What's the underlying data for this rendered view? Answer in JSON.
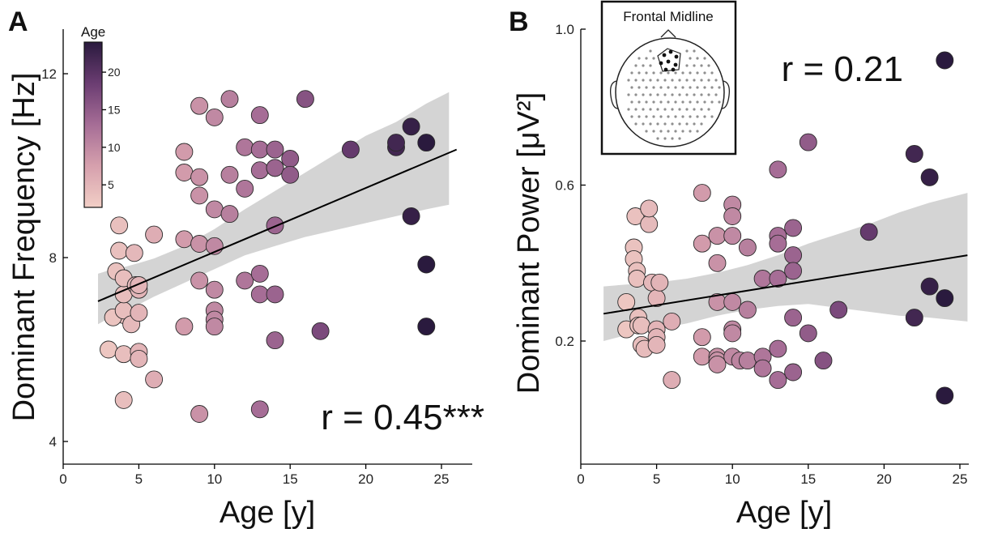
{
  "chart_data": [
    {
      "panel": "A",
      "type": "scatter",
      "xlabel": "Age [y]",
      "ylabel": "Dominant Frequency [Hz]",
      "xlim": [
        0,
        27
      ],
      "ylim": [
        3.5,
        13
      ],
      "xticks": [
        0,
        5,
        10,
        15,
        20,
        25
      ],
      "yticks": [
        4,
        8,
        12
      ],
      "annotation": "r = 0.45***",
      "colorbar": {
        "title": "Age",
        "ticks": [
          5,
          10,
          15,
          20
        ],
        "range": [
          2,
          24
        ]
      },
      "fit": {
        "x": [
          2.3,
          26
        ],
        "y": [
          7.05,
          10.35
        ]
      },
      "ci_band": {
        "x": [
          2.3,
          3,
          4,
          5,
          6,
          8,
          10,
          12,
          14,
          16,
          18,
          20,
          22,
          24,
          25.5
        ],
        "upper": [
          7.65,
          7.72,
          7.79,
          7.88,
          7.98,
          8.25,
          8.62,
          9.05,
          9.45,
          9.85,
          10.25,
          10.65,
          10.95,
          11.35,
          11.6
        ],
        "lower": [
          6.55,
          6.68,
          6.82,
          6.98,
          7.15,
          7.45,
          7.75,
          8.05,
          8.25,
          8.45,
          8.6,
          8.75,
          8.9,
          9.05,
          9.15
        ]
      },
      "points": [
        [
          4,
          6.75
        ],
        [
          3,
          6.0
        ],
        [
          3.3,
          6.7
        ],
        [
          3.5,
          7.7
        ],
        [
          3.7,
          8.15
        ],
        [
          3.7,
          8.7
        ],
        [
          4,
          6.85
        ],
        [
          4,
          7.2
        ],
        [
          4,
          7.55
        ],
        [
          4,
          5.9
        ],
        [
          4,
          4.9
        ],
        [
          4.5,
          6.55
        ],
        [
          4.7,
          8.1
        ],
        [
          4.8,
          7.4
        ],
        [
          5,
          7.3
        ],
        [
          5,
          6.8
        ],
        [
          5,
          7.4
        ],
        [
          5,
          5.95
        ],
        [
          5,
          5.8
        ],
        [
          6,
          8.5
        ],
        [
          6,
          5.35
        ],
        [
          8,
          9.85
        ],
        [
          8,
          10.3
        ],
        [
          8,
          8.4
        ],
        [
          8,
          6.5
        ],
        [
          9,
          11.3
        ],
        [
          9,
          9.75
        ],
        [
          9,
          9.35
        ],
        [
          9,
          8.3
        ],
        [
          9,
          7.5
        ],
        [
          9,
          4.6
        ],
        [
          10,
          11.05
        ],
        [
          10,
          9.05
        ],
        [
          10,
          8.25
        ],
        [
          10,
          7.3
        ],
        [
          10,
          6.85
        ],
        [
          10,
          6.65
        ],
        [
          10,
          6.5
        ],
        [
          11,
          11.45
        ],
        [
          11,
          9.8
        ],
        [
          11,
          8.95
        ],
        [
          12,
          10.4
        ],
        [
          12,
          9.5
        ],
        [
          12,
          7.5
        ],
        [
          13,
          11.1
        ],
        [
          13,
          10.35
        ],
        [
          13,
          9.9
        ],
        [
          13,
          7.65
        ],
        [
          13,
          7.2
        ],
        [
          13,
          4.7
        ],
        [
          14,
          10.35
        ],
        [
          14,
          9.95
        ],
        [
          14,
          9.95
        ],
        [
          14,
          8.7
        ],
        [
          14,
          7.2
        ],
        [
          14,
          6.2
        ],
        [
          15,
          10.15
        ],
        [
          15,
          9.8
        ],
        [
          16,
          11.45
        ],
        [
          17,
          6.4
        ],
        [
          19,
          10.35
        ],
        [
          22,
          10.4
        ],
        [
          22,
          10.5
        ],
        [
          23,
          10.85
        ],
        [
          23,
          8.9
        ],
        [
          24,
          10.5
        ],
        [
          24,
          7.85
        ],
        [
          24,
          6.5
        ]
      ]
    },
    {
      "panel": "B",
      "type": "scatter",
      "xlabel": "Age [y]",
      "ylabel": "Dominant Power [μV²]",
      "xlim": [
        0,
        26
      ],
      "ylim": [
        -0.1,
        1.0
      ],
      "xticks": [
        0,
        5,
        10,
        15,
        20,
        25
      ],
      "yticks": [
        0.2,
        0.6,
        1.0
      ],
      "annotation": "r = 0.21",
      "inset": {
        "title": "Frontal Midline"
      },
      "fit": {
        "x": [
          1.5,
          25.5
        ],
        "y": [
          0.27,
          0.42
        ]
      },
      "ci_band": {
        "x": [
          1.5,
          3,
          5,
          7,
          9,
          11,
          13,
          15,
          17,
          19,
          21,
          23,
          25.5
        ],
        "upper": [
          0.34,
          0.345,
          0.35,
          0.36,
          0.375,
          0.395,
          0.42,
          0.45,
          0.475,
          0.5,
          0.53,
          0.555,
          0.58
        ],
        "lower": [
          0.2,
          0.215,
          0.23,
          0.245,
          0.265,
          0.28,
          0.29,
          0.295,
          0.285,
          0.275,
          0.265,
          0.26,
          0.25
        ]
      },
      "points": [
        [
          3,
          0.3
        ],
        [
          3,
          0.23
        ],
        [
          3.5,
          0.44
        ],
        [
          3.5,
          0.41
        ],
        [
          3.6,
          0.52
        ],
        [
          3.7,
          0.38
        ],
        [
          3.7,
          0.36
        ],
        [
          3.8,
          0.26
        ],
        [
          3.8,
          0.24
        ],
        [
          4,
          0.24
        ],
        [
          4,
          0.19
        ],
        [
          4.2,
          0.18
        ],
        [
          4.5,
          0.5
        ],
        [
          4.5,
          0.54
        ],
        [
          4.7,
          0.35
        ],
        [
          5,
          0.23
        ],
        [
          5,
          0.21
        ],
        [
          5,
          0.19
        ],
        [
          5,
          0.31
        ],
        [
          5.2,
          0.35
        ],
        [
          6,
          0.25
        ],
        [
          6,
          0.1
        ],
        [
          8,
          0.58
        ],
        [
          8,
          0.45
        ],
        [
          8,
          0.21
        ],
        [
          8,
          0.16
        ],
        [
          9,
          0.47
        ],
        [
          9,
          0.4
        ],
        [
          9,
          0.3
        ],
        [
          9,
          0.16
        ],
        [
          9,
          0.15
        ],
        [
          9,
          0.14
        ],
        [
          10,
          0.55
        ],
        [
          10,
          0.52
        ],
        [
          10,
          0.47
        ],
        [
          10,
          0.3
        ],
        [
          10,
          0.23
        ],
        [
          10,
          0.22
        ],
        [
          10,
          0.16
        ],
        [
          10.5,
          0.15
        ],
        [
          11,
          0.44
        ],
        [
          11,
          0.28
        ],
        [
          11,
          0.15
        ],
        [
          12,
          0.16
        ],
        [
          12,
          0.13
        ],
        [
          12,
          0.36
        ],
        [
          13,
          0.64
        ],
        [
          13,
          0.47
        ],
        [
          13,
          0.45
        ],
        [
          13,
          0.36
        ],
        [
          13,
          0.18
        ],
        [
          13,
          0.1
        ],
        [
          14,
          0.49
        ],
        [
          14,
          0.42
        ],
        [
          14,
          0.38
        ],
        [
          14,
          0.26
        ],
        [
          14,
          0.12
        ],
        [
          15,
          0.71
        ],
        [
          15,
          0.22
        ],
        [
          16,
          0.15
        ],
        [
          17,
          0.28
        ],
        [
          19,
          0.48
        ],
        [
          22,
          0.68
        ],
        [
          22,
          0.26
        ],
        [
          23,
          0.62
        ],
        [
          23,
          0.34
        ],
        [
          24,
          0.92
        ],
        [
          24,
          0.31
        ],
        [
          24,
          0.06
        ]
      ]
    }
  ]
}
